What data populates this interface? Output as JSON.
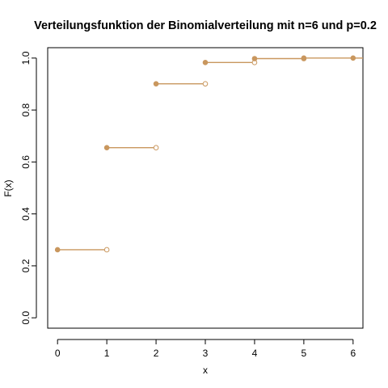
{
  "chart_data": {
    "type": "line",
    "subtype": "step-cdf",
    "title": "Verteilungsfunktion der Binomialverteilung mit n=6 und p=0.2",
    "xlabel": "x",
    "ylabel": "F(x)",
    "xlim": [
      -0.2,
      6.2
    ],
    "ylim": [
      -0.04,
      1.04
    ],
    "x_ticks": [
      "0",
      "1",
      "2",
      "3",
      "4",
      "5",
      "6"
    ],
    "y_ticks": [
      "0.0",
      "0.2",
      "0.4",
      "0.6",
      "0.8",
      "1.0"
    ],
    "grid": false,
    "legend": "none",
    "color": "#C9975E",
    "steps": [
      {
        "x": 0,
        "x_end": 1,
        "y": 0.262
      },
      {
        "x": 1,
        "x_end": 2,
        "y": 0.655
      },
      {
        "x": 2,
        "x_end": 3,
        "y": 0.901
      },
      {
        "x": 3,
        "x_end": 4,
        "y": 0.983
      },
      {
        "x": 4,
        "x_end": 5,
        "y": 0.998
      },
      {
        "x": 5,
        "x_end": 6,
        "y": 1.0
      },
      {
        "x": 6,
        "x_end": 6.2,
        "y": 1.0
      }
    ]
  }
}
